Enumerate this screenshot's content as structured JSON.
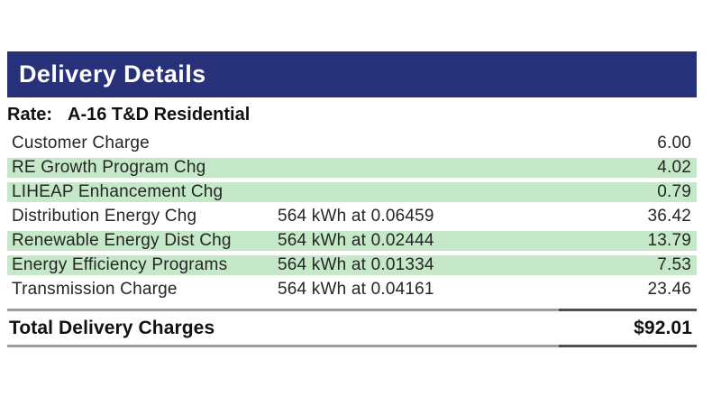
{
  "header": {
    "title": "Delivery Details"
  },
  "rate": {
    "label": "Rate:",
    "value": "A-16 T&D Residential"
  },
  "charges": {
    "rows": [
      {
        "name": "Customer Charge",
        "detail": "",
        "amount": "6.00",
        "highlighted": false
      },
      {
        "name": "RE Growth Program Chg",
        "detail": "",
        "amount": "4.02",
        "highlighted": true
      },
      {
        "name": "LIHEAP Enhancement Chg",
        "detail": "",
        "amount": "0.79",
        "highlighted": true
      },
      {
        "name": "Distribution Energy Chg",
        "detail": "564 kWh at 0.06459",
        "amount": "36.42",
        "highlighted": false
      },
      {
        "name": "Renewable Energy Dist Chg",
        "detail": "564 kWh at 0.02444",
        "amount": "13.79",
        "highlighted": true
      },
      {
        "name": "Energy Efficiency Programs",
        "detail": "564 kWh at 0.01334",
        "amount": "7.53",
        "highlighted": true
      },
      {
        "name": "Transmission Charge",
        "detail": "564 kWh at 0.04161",
        "amount": "23.46",
        "highlighted": false
      }
    ]
  },
  "total": {
    "label": "Total Delivery Charges",
    "amount": "$92.01"
  },
  "colors": {
    "header_bg": "#28327a",
    "highlight": "#c5e8c8",
    "rule_light": "#9e9e9e",
    "rule_dark": "#4d4d4d",
    "text": "#262626"
  }
}
